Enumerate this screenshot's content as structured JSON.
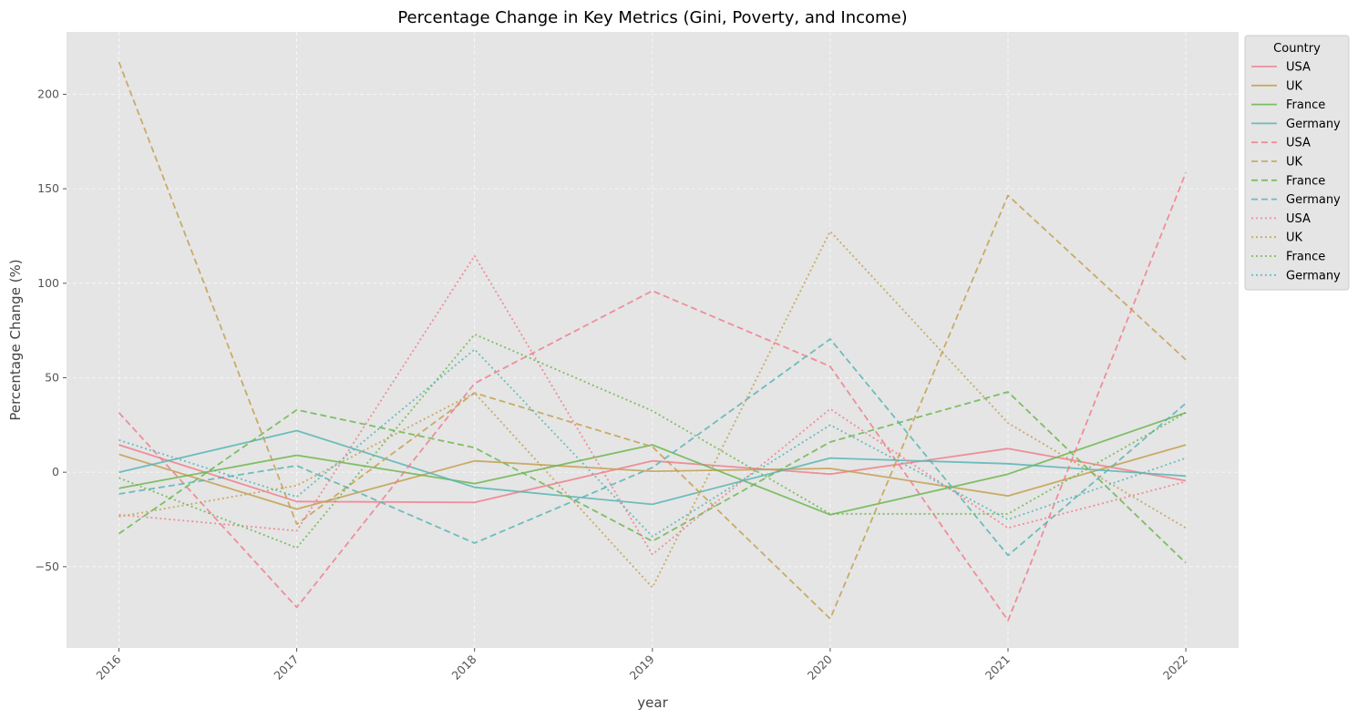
{
  "chart_data": {
    "type": "line",
    "title": "Percentage Change in Key Metrics (Gini, Poverty, and Income)",
    "xlabel": "year",
    "ylabel": "Percentage Change (%)",
    "x": [
      "2016",
      "2017",
      "2018",
      "2019",
      "2020",
      "2021",
      "2022"
    ],
    "ylim": [
      -93,
      233
    ],
    "yticks": [
      -50,
      0,
      50,
      100,
      150,
      200
    ],
    "ytick_labels": [
      "−50",
      "0",
      "50",
      "100",
      "150",
      "200"
    ],
    "grid": true,
    "legend": {
      "title": "Country",
      "placement": "outside-top-right"
    },
    "colors": {
      "USA": "#f07f8c",
      "UK": "#c4a052",
      "France": "#6cb74f",
      "Germany": "#58b5b5"
    },
    "series": [
      {
        "name": "USA",
        "style": "solid",
        "values": [
          14.5,
          -15.5,
          -16,
          6,
          -1,
          12.5,
          -4.5
        ]
      },
      {
        "name": "UK",
        "style": "solid",
        "values": [
          9.5,
          -19.5,
          6,
          0.5,
          2,
          -12.5,
          14.5
        ]
      },
      {
        "name": "France",
        "style": "solid",
        "values": [
          -8.5,
          9,
          -6,
          14.5,
          -22.5,
          -1,
          31.5
        ]
      },
      {
        "name": "Germany",
        "style": "solid",
        "values": [
          0,
          22,
          -8,
          -17,
          7.5,
          4.5,
          -2
        ]
      },
      {
        "name": "USA",
        "style": "dashed",
        "values": [
          31.5,
          -71.5,
          47,
          96,
          56,
          -78.5,
          158.5
        ]
      },
      {
        "name": "UK",
        "style": "dashed",
        "values": [
          217,
          -27.5,
          42,
          13.5,
          -77.5,
          146.5,
          59.5
        ]
      },
      {
        "name": "France",
        "style": "dashed",
        "values": [
          -32.5,
          33,
          13,
          -36.5,
          16,
          42.5,
          -48
        ]
      },
      {
        "name": "Germany",
        "style": "dashed",
        "values": [
          -11.5,
          3.5,
          -37.5,
          2.5,
          70.5,
          -44,
          36.5
        ]
      },
      {
        "name": "USA",
        "style": "dotted",
        "values": [
          -22.5,
          -31,
          114.5,
          -43.5,
          33.5,
          -29.5,
          -5
        ]
      },
      {
        "name": "UK",
        "style": "dotted",
        "values": [
          -23.5,
          -7,
          42,
          -61,
          127.5,
          26,
          -29.5
        ]
      },
      {
        "name": "France",
        "style": "dotted",
        "values": [
          -3,
          -40,
          73,
          32.5,
          -22,
          -22,
          31.5
        ]
      },
      {
        "name": "Germany",
        "style": "dotted",
        "values": [
          17,
          -13,
          65,
          -34,
          25,
          -25,
          7.5
        ]
      }
    ]
  }
}
